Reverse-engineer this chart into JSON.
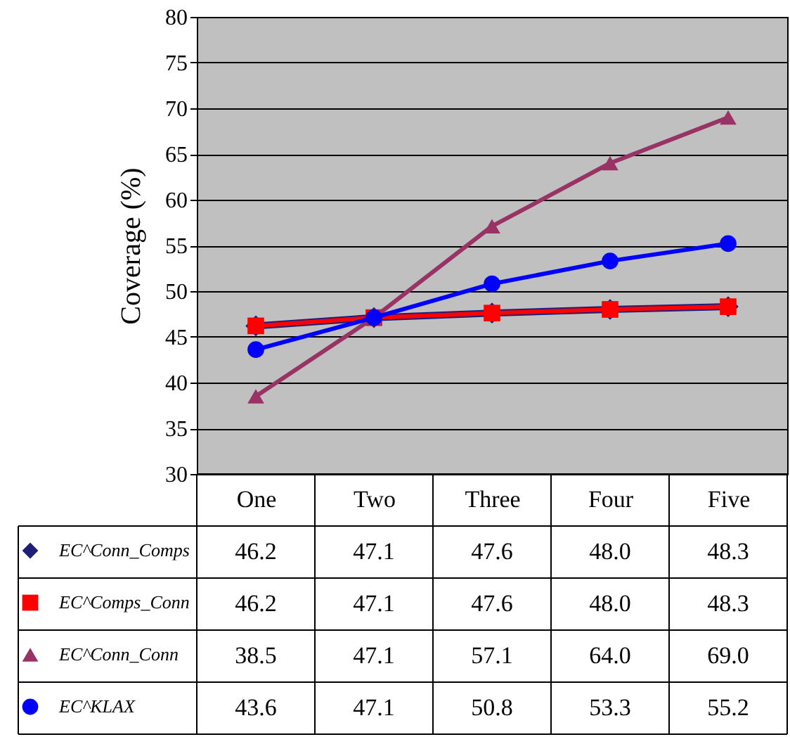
{
  "chart_data": {
    "type": "line",
    "ylabel": "Coverage (%)",
    "categories": [
      "One",
      "Two",
      "Three",
      "Four",
      "Five"
    ],
    "series": [
      {
        "name": "EC^Conn_Comps",
        "color": "#1f1f7a",
        "marker": "diamond",
        "values": [
          46.2,
          47.1,
          47.6,
          48.0,
          48.3
        ],
        "value_labels": [
          "46.2",
          "47.1",
          "47.6",
          "48.0",
          "48.3"
        ]
      },
      {
        "name": "EC^Comps_Conn",
        "color": "#ff0000",
        "marker": "square",
        "values": [
          46.2,
          47.1,
          47.6,
          48.0,
          48.3
        ],
        "value_labels": [
          "46.2",
          "47.1",
          "47.6",
          "48.0",
          "48.3"
        ]
      },
      {
        "name": "EC^Conn_Conn",
        "color": "#993366",
        "marker": "triangle",
        "values": [
          38.5,
          47.1,
          57.1,
          64.0,
          69.0
        ],
        "value_labels": [
          "38.5",
          "47.1",
          "57.1",
          "64.0",
          "69.0"
        ]
      },
      {
        "name": "EC^KLAX",
        "color": "#0000ff",
        "marker": "circle",
        "values": [
          43.6,
          47.1,
          50.8,
          53.3,
          55.2
        ],
        "value_labels": [
          "43.6",
          "47.1",
          "50.8",
          "53.3",
          "55.2"
        ]
      }
    ],
    "ylim": [
      30,
      80
    ],
    "yticks": [
      30,
      35,
      40,
      45,
      50,
      55,
      60,
      65,
      70,
      75,
      80
    ],
    "grid": "y",
    "legend": "bottom left"
  }
}
